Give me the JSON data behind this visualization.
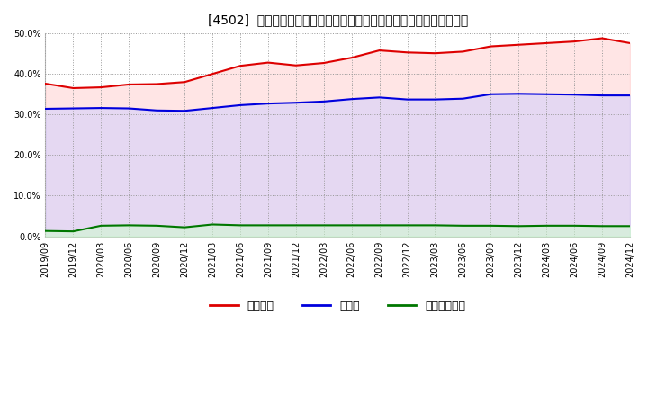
{
  "title": "[4502]  自己資本、のれん、繰延税金資産の総資産に対する比率の推移",
  "x_labels": [
    "2019/09",
    "2019/12",
    "2020/03",
    "2020/06",
    "2020/09",
    "2020/12",
    "2021/03",
    "2021/06",
    "2021/09",
    "2021/12",
    "2022/03",
    "2022/06",
    "2022/09",
    "2022/12",
    "2023/03",
    "2023/06",
    "2023/09",
    "2023/12",
    "2024/03",
    "2024/06",
    "2024/09",
    "2024/12"
  ],
  "jikoshihon": [
    0.376,
    0.365,
    0.367,
    0.374,
    0.375,
    0.38,
    0.4,
    0.42,
    0.428,
    0.421,
    0.427,
    0.44,
    0.458,
    0.453,
    0.451,
    0.455,
    0.468,
    0.472,
    0.476,
    0.48,
    0.488,
    0.476
  ],
  "noren": [
    0.314,
    0.315,
    0.316,
    0.315,
    0.31,
    0.309,
    0.316,
    0.323,
    0.327,
    0.329,
    0.332,
    0.338,
    0.342,
    0.337,
    0.337,
    0.339,
    0.35,
    0.351,
    0.35,
    0.349,
    0.347,
    0.347
  ],
  "kurinobe": [
    0.013,
    0.012,
    0.026,
    0.027,
    0.026,
    0.022,
    0.029,
    0.027,
    0.027,
    0.027,
    0.027,
    0.027,
    0.027,
    0.027,
    0.027,
    0.026,
    0.026,
    0.025,
    0.026,
    0.026,
    0.025,
    0.025
  ],
  "line_colors": {
    "jikoshihon": "#dd0000",
    "noren": "#0000dd",
    "kurinobe": "#007700"
  },
  "fill_colors": {
    "jikoshihon": "#ffcccc",
    "noren": "#ccccff",
    "kurinobe": "#ccffcc"
  },
  "fill_alpha": 0.5,
  "legend_labels": [
    "自己資本",
    "のれん",
    "繰延税金資産"
  ],
  "ylim": [
    0.0,
    0.5
  ],
  "yticks": [
    0.0,
    0.1,
    0.2,
    0.3,
    0.4,
    0.5
  ],
  "background_color": "#ffffff",
  "plot_bg_color": "#ffffff",
  "grid_color": "#999999",
  "title_fontsize": 10,
  "tick_fontsize": 7,
  "legend_fontsize": 9
}
